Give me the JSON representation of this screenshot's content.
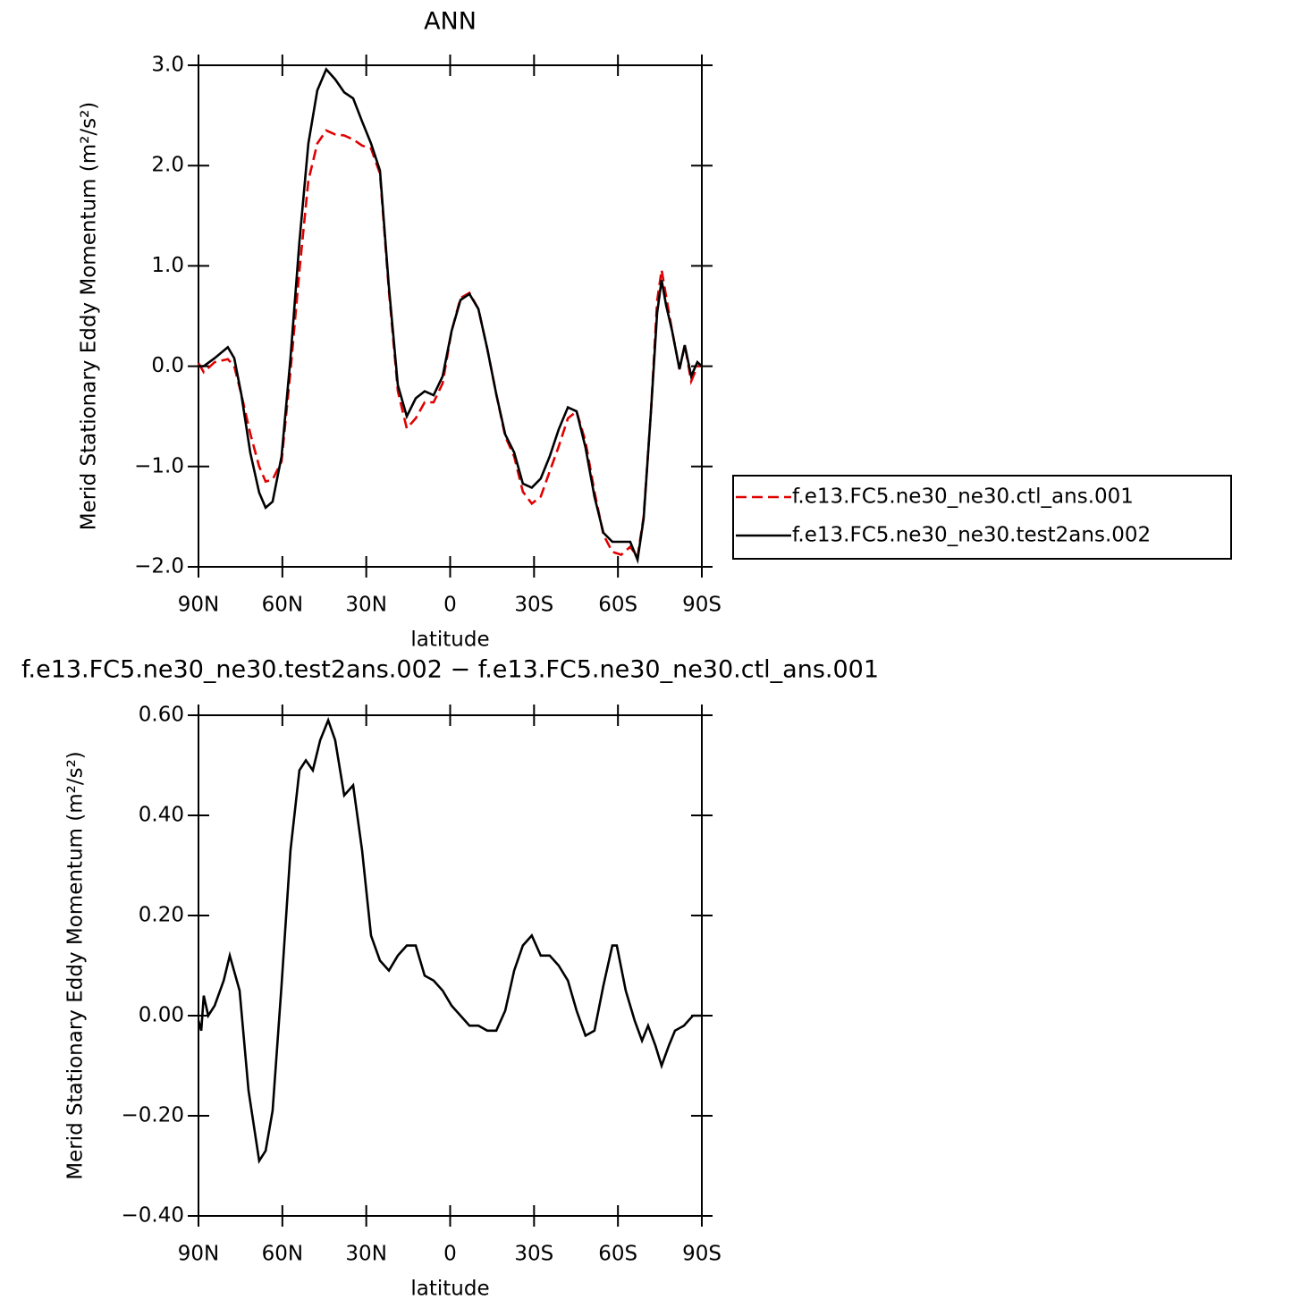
{
  "chart_data": [
    {
      "type": "line",
      "title": "ANN",
      "xlabel": "latitude",
      "ylabel": "Merid Stationary Eddy Momentum (m²/s²)",
      "x": [
        90,
        88.1,
        84.2,
        79.5,
        77.2,
        74.7,
        71.5,
        68.3,
        66.0,
        63.5,
        60.3,
        57.1,
        53.9,
        50.7,
        47.5,
        44.3,
        41.1,
        37.9,
        34.7,
        31.5,
        28.3,
        25.1,
        21.9,
        18.7,
        15.5,
        12.3,
        9.1,
        5.9,
        2.7,
        -0.5,
        -3.7,
        -6.9,
        -10.1,
        -13.3,
        -16.5,
        -19.7,
        -22.9,
        -26.0,
        -29.2,
        -32.4,
        -35.6,
        -38.8,
        -42.1,
        -45.2,
        -48.4,
        -51.6,
        -54.8,
        -58.0,
        -61.2,
        -64.4,
        -67.0,
        -69.2,
        -71.8,
        -74.0,
        -75.6,
        -77.2,
        -79.4,
        -82.0,
        -83.9,
        -86.2,
        -88.4,
        -90
      ],
      "series": [
        {
          "name": "f.e13.FC5.ne30_ne30.ctl_ans.001",
          "color": "#e00000",
          "style": "dashed",
          "values": [
            0.03,
            -0.06,
            0.04,
            0.07,
            0.0,
            -0.28,
            -0.67,
            -1.0,
            -1.15,
            -1.13,
            -0.95,
            -0.05,
            0.95,
            1.85,
            2.22,
            2.35,
            2.31,
            2.3,
            2.26,
            2.2,
            2.17,
            1.92,
            0.75,
            -0.25,
            -0.62,
            -0.52,
            -0.36,
            -0.36,
            -0.17,
            0.35,
            0.68,
            0.73,
            0.57,
            0.17,
            -0.28,
            -0.7,
            -0.9,
            -1.25,
            -1.37,
            -1.3,
            -1.05,
            -0.8,
            -0.52,
            -0.45,
            -0.75,
            -1.25,
            -1.68,
            -1.85,
            -1.88,
            -1.8,
            -1.9,
            -1.5,
            -0.45,
            0.65,
            0.96,
            0.7,
            0.35,
            -0.03,
            0.21,
            -0.15,
            0.0,
            0.0
          ]
        },
        {
          "name": "f.e13.FC5.ne30_ne30.test2ans.002",
          "color": "#000000",
          "style": "solid",
          "values": [
            0.0,
            0.0,
            0.08,
            0.19,
            0.08,
            -0.28,
            -0.86,
            -1.26,
            -1.41,
            -1.35,
            -0.9,
            0.08,
            1.24,
            2.22,
            2.75,
            2.96,
            2.86,
            2.73,
            2.67,
            2.44,
            2.22,
            1.95,
            0.79,
            -0.19,
            -0.5,
            -0.32,
            -0.25,
            -0.29,
            -0.1,
            0.35,
            0.66,
            0.72,
            0.57,
            0.17,
            -0.28,
            -0.68,
            -0.86,
            -1.17,
            -1.21,
            -1.12,
            -0.9,
            -0.63,
            -0.41,
            -0.45,
            -0.81,
            -1.3,
            -1.66,
            -1.75,
            -1.75,
            -1.75,
            -1.93,
            -1.52,
            -0.45,
            0.53,
            0.86,
            0.61,
            0.35,
            -0.03,
            0.21,
            -0.1,
            0.04,
            0.0
          ]
        }
      ],
      "xlim": [
        90,
        -90
      ],
      "xticks": [
        {
          "value": 90,
          "label": "90N"
        },
        {
          "value": 60,
          "label": "60N"
        },
        {
          "value": 30,
          "label": "30N"
        },
        0,
        {
          "value": -30,
          "label": "30S"
        },
        {
          "value": -60,
          "label": "60S"
        },
        {
          "value": -90,
          "label": "90S"
        }
      ],
      "ylim": [
        -2.0,
        3.0
      ],
      "yticks": [
        {
          "value": 3.0,
          "label": "3.0"
        },
        {
          "value": 2.0,
          "label": "2.0"
        },
        {
          "value": 1.0,
          "label": "1.0"
        },
        {
          "value": 0,
          "label": "0.0"
        },
        {
          "value": -1.0,
          "label": "−1.0"
        },
        {
          "value": -2.0,
          "label": "−2.0"
        }
      ],
      "legend": "right"
    },
    {
      "type": "line",
      "title": "f.e13.FC5.ne30_ne30.test2ans.002 − f.e13.FC5.ne30_ne30.ctl_ans.001",
      "xlabel": "latitude",
      "ylabel": "Merid Stationary Eddy Momentum (m²/s²)",
      "x": [
        90,
        89.0,
        88.1,
        86.5,
        84.2,
        81.0,
        78.8,
        75.3,
        72.1,
        68.3,
        66.0,
        63.5,
        60.3,
        57.1,
        53.9,
        51.6,
        49.1,
        46.5,
        43.6,
        41.1,
        37.9,
        34.7,
        31.5,
        28.3,
        25.1,
        21.9,
        18.7,
        15.5,
        12.3,
        9.1,
        5.9,
        2.7,
        -0.5,
        -3.7,
        -6.9,
        -10.1,
        -13.3,
        -16.5,
        -19.7,
        -22.9,
        -26.0,
        -29.2,
        -32.4,
        -35.6,
        -38.8,
        -42.1,
        -45.2,
        -48.4,
        -51.6,
        -54.8,
        -58.0,
        -59.6,
        -62.8,
        -66.0,
        -68.6,
        -70.8,
        -73.4,
        -75.6,
        -78.2,
        -80.4,
        -83.6,
        -86.8,
        -90
      ],
      "color": "#000000",
      "values": [
        -0.01,
        -0.03,
        0.04,
        0.0,
        0.02,
        0.07,
        0.12,
        0.05,
        -0.15,
        -0.29,
        -0.27,
        -0.19,
        0.06,
        0.33,
        0.49,
        0.51,
        0.49,
        0.55,
        0.59,
        0.55,
        0.44,
        0.46,
        0.33,
        0.16,
        0.11,
        0.09,
        0.12,
        0.14,
        0.14,
        0.08,
        0.07,
        0.05,
        0.02,
        0.0,
        -0.02,
        -0.02,
        -0.03,
        -0.03,
        0.01,
        0.09,
        0.14,
        0.16,
        0.12,
        0.12,
        0.1,
        0.07,
        0.01,
        -0.04,
        -0.03,
        0.06,
        0.14,
        0.14,
        0.05,
        -0.01,
        -0.05,
        -0.02,
        -0.06,
        -0.1,
        -0.06,
        -0.03,
        -0.02,
        0.0,
        0.0
      ],
      "xlim": [
        90,
        -90
      ],
      "xticks": [
        {
          "value": 90,
          "label": "90N"
        },
        {
          "value": 60,
          "label": "60N"
        },
        {
          "value": 30,
          "label": "30N"
        },
        0,
        {
          "value": -30,
          "label": "30S"
        },
        {
          "value": -60,
          "label": "60S"
        },
        {
          "value": -90,
          "label": "90S"
        }
      ],
      "ylim": [
        -0.4,
        0.6
      ],
      "yticks": [
        {
          "value": 0.6,
          "label": "0.60"
        },
        {
          "value": 0.4,
          "label": "0.40"
        },
        {
          "value": 0.2,
          "label": "0.20"
        },
        {
          "value": 0,
          "label": "0.00"
        },
        {
          "value": -0.2,
          "label": "−0.20"
        },
        {
          "value": -0.4,
          "label": "−0.40"
        }
      ]
    }
  ]
}
